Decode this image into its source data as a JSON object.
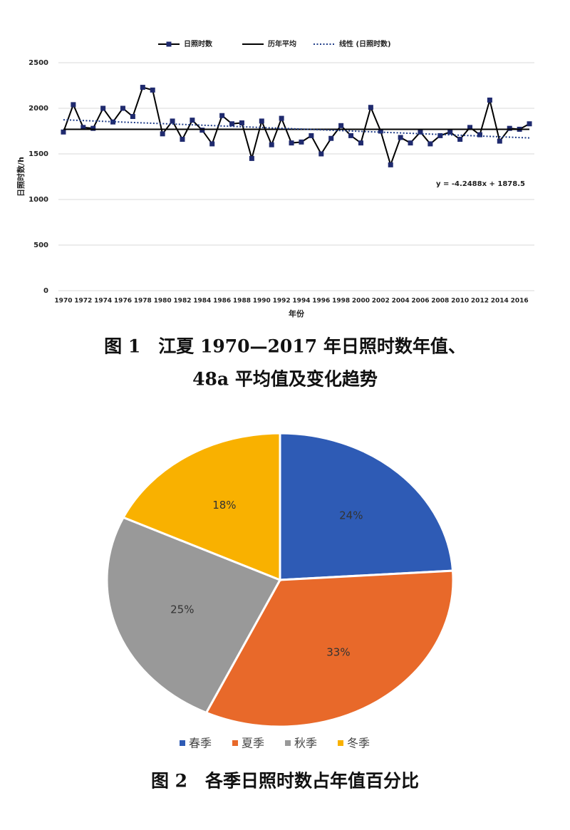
{
  "chart_data": [
    {
      "type": "line",
      "caption": [
        "图 1　江夏 1970—2017 年日照时数年值、",
        "48a 平均值及变化趋势"
      ],
      "xlabel": "年份",
      "ylabel": "日照时数/h",
      "annotation": "y = -4.2488x + 1878.5",
      "xlim": [
        1969.5,
        2017.5
      ],
      "ylim": [
        0,
        2500
      ],
      "xticks": [
        1970,
        1972,
        1974,
        1976,
        1978,
        1980,
        1982,
        1984,
        1986,
        1988,
        1990,
        1992,
        1994,
        1996,
        1998,
        2000,
        2002,
        2004,
        2006,
        2008,
        2010,
        2012,
        2014,
        2016
      ],
      "yticks": [
        0,
        500,
        1000,
        1500,
        2000,
        2500
      ],
      "grid": true,
      "series": [
        {
          "name": "日照时数",
          "color": "#000000",
          "marker_color": "#1f2a6e",
          "style": "solid-marker",
          "x": [
            1970,
            1971,
            1972,
            1973,
            1974,
            1975,
            1976,
            1977,
            1978,
            1979,
            1980,
            1981,
            1982,
            1983,
            1984,
            1985,
            1986,
            1987,
            1988,
            1989,
            1990,
            1991,
            1992,
            1993,
            1994,
            1995,
            1996,
            1997,
            1998,
            1999,
            2000,
            2001,
            2002,
            2003,
            2004,
            2005,
            2006,
            2007,
            2008,
            2009,
            2010,
            2011,
            2012,
            2013,
            2014,
            2015,
            2016,
            2017
          ],
          "values": [
            1740,
            2040,
            1790,
            1780,
            2000,
            1850,
            2000,
            1910,
            2230,
            2200,
            1720,
            1860,
            1660,
            1870,
            1760,
            1610,
            1920,
            1830,
            1840,
            1450,
            1860,
            1600,
            1890,
            1620,
            1630,
            1700,
            1500,
            1670,
            1810,
            1700,
            1620,
            2010,
            1750,
            1380,
            1680,
            1620,
            1740,
            1610,
            1700,
            1740,
            1660,
            1790,
            1710,
            2090,
            1640,
            1780,
            1770,
            1830
          ]
        },
        {
          "name": "历年平均",
          "color": "#000000",
          "style": "solid",
          "x": [
            1970,
            2017
          ],
          "values": [
            1770,
            1770
          ]
        },
        {
          "name": "线性 (日照时数)",
          "color": "#1f3c88",
          "style": "dotted",
          "x": [
            1970,
            2017
          ],
          "values": [
            1874,
            1675
          ]
        }
      ]
    },
    {
      "type": "pie",
      "caption": [
        "图 2　各季日照时数占年值百分比"
      ],
      "categories": [
        "春季",
        "夏季",
        "秋季",
        "冬季"
      ],
      "values": [
        24,
        33,
        25,
        18
      ],
      "value_labels": [
        "24%",
        "33%",
        "25%",
        "18%"
      ],
      "colors": [
        "#2e5bb5",
        "#e8692a",
        "#999999",
        "#f9b100"
      ],
      "legend": "bottom"
    }
  ]
}
